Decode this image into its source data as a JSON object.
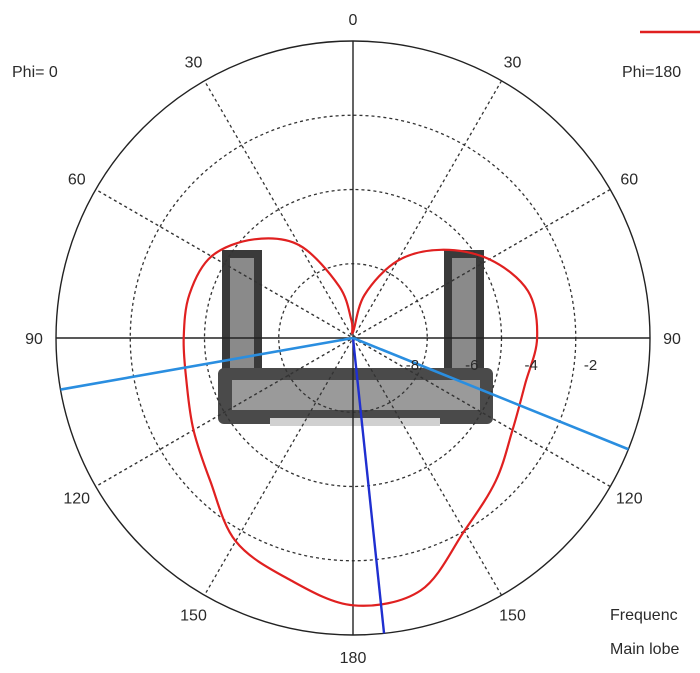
{
  "labels": {
    "phi_left": "Phi=  0",
    "phi_right": "Phi=180",
    "info_line1": "Frequenc",
    "info_line2": "Main lobe"
  },
  "colors": {
    "pattern": "#e02020",
    "main_lobe_direction": "#1f2fd0",
    "beamwidth_lines": "#2a8ee0",
    "circles": "#222222",
    "grid": "#333333"
  },
  "chart_data": {
    "type": "polar",
    "theta_labels": [
      {
        "angle": 0,
        "text": "0"
      },
      {
        "angle": 30,
        "text": "30"
      },
      {
        "angle": -30,
        "text": "30"
      },
      {
        "angle": 60,
        "text": "60"
      },
      {
        "angle": -60,
        "text": "60"
      },
      {
        "angle": 90,
        "text": "90"
      },
      {
        "angle": -90,
        "text": "90"
      },
      {
        "angle": 120,
        "text": "120"
      },
      {
        "angle": -120,
        "text": "120"
      },
      {
        "angle": 150,
        "text": "150"
      },
      {
        "angle": -150,
        "text": "150"
      },
      {
        "angle": 180,
        "text": "180"
      }
    ],
    "radial_labels": [
      "-8",
      "-6",
      "-4",
      "-2"
    ],
    "rlim": [
      -10,
      0
    ],
    "grid": true,
    "series": [
      {
        "name": "Phi=180",
        "theta_deg": [
          -5,
          -15,
          -30,
          -45,
          -60,
          -75,
          -90,
          -105,
          -120,
          -135,
          -150,
          -165,
          -180,
          -195,
          -210,
          -225,
          -240,
          -255,
          -270,
          -285,
          -300,
          -315,
          -330,
          -345,
          -360
        ],
        "r_norm": [
          0.06,
          0.18,
          0.36,
          0.47,
          0.55,
          0.57,
          0.57,
          0.58,
          0.62,
          0.68,
          0.79,
          0.84,
          0.9,
          0.88,
          0.75,
          0.68,
          0.62,
          0.6,
          0.62,
          0.61,
          0.53,
          0.42,
          0.3,
          0.15,
          0.02
        ]
      }
    ],
    "main_lobe_direction_deg": 174,
    "beamwidth_lines_deg": [
      -100,
      112
    ]
  }
}
